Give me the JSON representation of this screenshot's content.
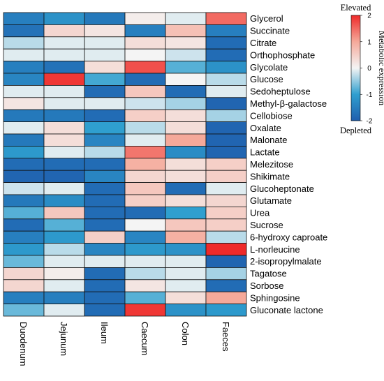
{
  "chart_data": {
    "type": "heatmap",
    "columns": [
      "Duodenum",
      "Jejunum",
      "Ileum",
      "Caecum",
      "Colon",
      "Faeces"
    ],
    "rows": [
      "Glycerol",
      "Succinate",
      "Citrate",
      "Orthophosphate",
      "Glycolate",
      "Glucose",
      "Sedoheptulose",
      "Methyl-β-galactose",
      "Cellobiose",
      "Oxalate",
      "Malonate",
      "Lactate",
      "Melezitose",
      "Shikimate",
      "Glucoheptonate",
      "Glutamate",
      "Urea",
      "Sucrose",
      "6-hydroxy caproate",
      "L-norleucine",
      "2-isopropylmalate",
      "Tagatose",
      "Sorbose",
      "Sphingosine",
      "Gluconate lactone"
    ],
    "values": [
      [
        -1.5,
        -1.2,
        -1.6,
        0.1,
        -0.1,
        1.5
      ],
      [
        -1.7,
        0.4,
        0.2,
        -1.5,
        0.7,
        -1.5
      ],
      [
        -0.3,
        -0.1,
        -0.1,
        0.3,
        0.2,
        -1.8
      ],
      [
        -0.1,
        -0.1,
        -0.1,
        0.0,
        -0.2,
        -1.8
      ],
      [
        -1.5,
        -1.7,
        0.3,
        1.7,
        -0.8,
        -1.2
      ],
      [
        -1.4,
        1.9,
        -0.9,
        -1.8,
        0.0,
        -0.3
      ],
      [
        -0.1,
        -0.1,
        -1.8,
        0.6,
        -1.8,
        -0.1
      ],
      [
        0.2,
        -0.1,
        -0.1,
        -0.2,
        -0.4,
        -1.9
      ],
      [
        -1.6,
        -1.6,
        -1.8,
        0.5,
        0.3,
        -0.4
      ],
      [
        -0.1,
        0.3,
        -1.0,
        -0.3,
        0.3,
        -1.9
      ],
      [
        -1.6,
        0.3,
        -1.4,
        -0.1,
        1.0,
        -1.9
      ],
      [
        -1.1,
        -0.1,
        -0.3,
        1.4,
        -1.3,
        -1.9
      ],
      [
        -1.8,
        -1.8,
        -1.8,
        0.9,
        0.3,
        0.5
      ],
      [
        -1.9,
        -1.9,
        -1.4,
        0.4,
        0.3,
        0.5
      ],
      [
        -0.2,
        -0.1,
        -1.8,
        0.6,
        -1.8,
        -0.1
      ],
      [
        -1.6,
        -1.3,
        -1.8,
        0.5,
        0.3,
        0.4
      ],
      [
        -0.8,
        0.6,
        -1.8,
        -1.8,
        -1.0,
        0.5
      ],
      [
        -1.8,
        -0.8,
        -1.8,
        0.0,
        0.6,
        0.5
      ],
      [
        -1.5,
        -1.1,
        0.5,
        -1.4,
        0.9,
        -0.3
      ],
      [
        -1.1,
        -0.3,
        -1.4,
        -1.1,
        -1.2,
        2.0
      ],
      [
        -0.7,
        -0.1,
        -0.1,
        -0.1,
        -0.1,
        -1.9
      ],
      [
        0.4,
        0.1,
        -1.8,
        -0.3,
        -0.1,
        -0.4
      ],
      [
        0.4,
        -0.1,
        -1.8,
        0.2,
        -0.1,
        -1.8
      ],
      [
        -1.5,
        -1.5,
        -1.8,
        -0.8,
        0.3,
        1.0
      ],
      [
        -0.7,
        -0.1,
        -1.8,
        1.9,
        -1.2,
        -1.1
      ]
    ],
    "colorbar": {
      "min": -2,
      "max": 2,
      "ticks": [
        "2",
        "1",
        "0",
        "-1",
        "-2"
      ],
      "top_label": "Elevated",
      "bottom_label": "Depleted",
      "axis_label": "Metabolic expression",
      "colors": [
        "#1f5fae",
        "#2f9fcf",
        "#f4f4f4",
        "#f5a99a",
        "#ee2a2a"
      ]
    }
  }
}
